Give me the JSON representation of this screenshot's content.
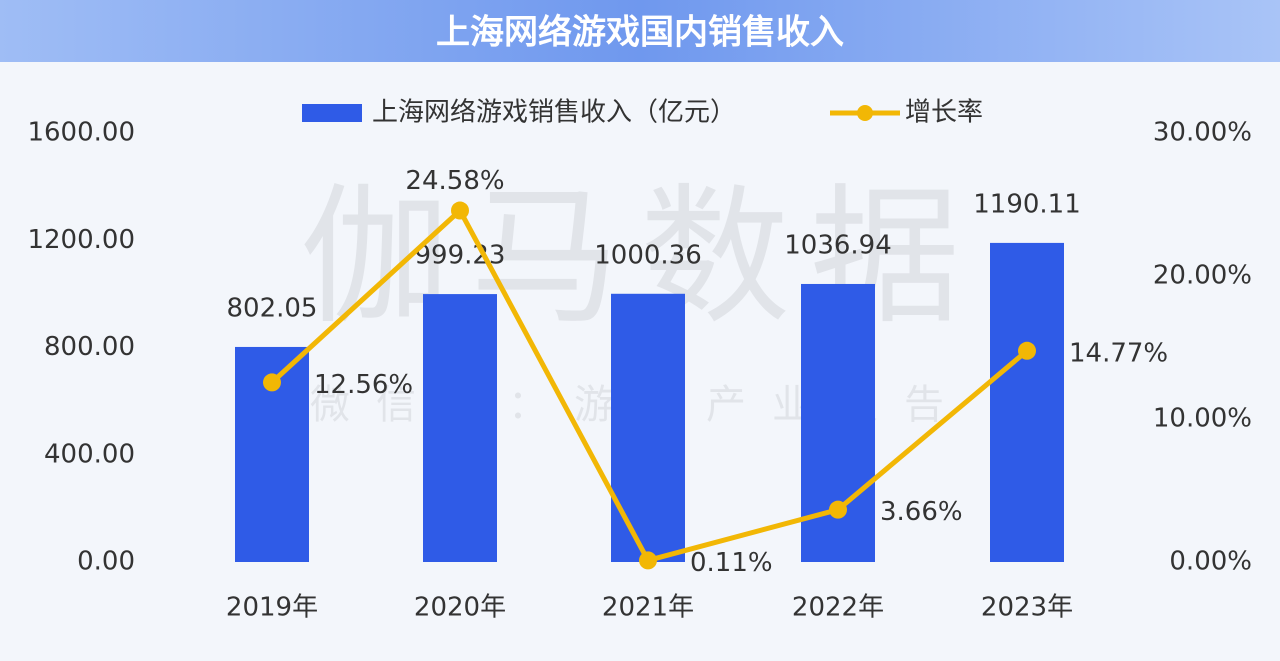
{
  "chart_data": {
    "type": "bar-line",
    "title": "上海网络游戏国内销售收入",
    "watermark": [
      "伽马数据",
      "微信号：游戏产业报告"
    ],
    "categories": [
      "2019年",
      "2020年",
      "2021年",
      "2022年",
      "2023年"
    ],
    "series": [
      {
        "name": "上海网络游戏销售收入（亿元）",
        "type": "bar",
        "color": "#2f5be7",
        "values": [
          802.05,
          999.23,
          1000.36,
          1036.94,
          1190.11
        ]
      },
      {
        "name": "增长率",
        "type": "line",
        "axis": "y2",
        "color": "#f2b705",
        "values": [
          12.56,
          24.58,
          0.11,
          3.66,
          14.77
        ],
        "value_labels": [
          "12.56%",
          "24.58%",
          "0.11%",
          "3.66%",
          "14.77%"
        ]
      }
    ],
    "ylim": [
      0,
      1600
    ],
    "yticks": [
      {
        "value": 0,
        "label": "0.00"
      },
      {
        "value": 400,
        "label": "400.00"
      },
      {
        "value": 800,
        "label": "800.00"
      },
      {
        "value": 1200,
        "label": "1200.00"
      },
      {
        "value": 1600,
        "label": "1600.00"
      }
    ],
    "y2lim": [
      0,
      30
    ],
    "y2ticks": [
      {
        "value": 0,
        "label": "0.00%"
      },
      {
        "value": 10,
        "label": "10.00%"
      },
      {
        "value": 20,
        "label": "20.00%"
      },
      {
        "value": 30,
        "label": "30.00%"
      }
    ]
  }
}
